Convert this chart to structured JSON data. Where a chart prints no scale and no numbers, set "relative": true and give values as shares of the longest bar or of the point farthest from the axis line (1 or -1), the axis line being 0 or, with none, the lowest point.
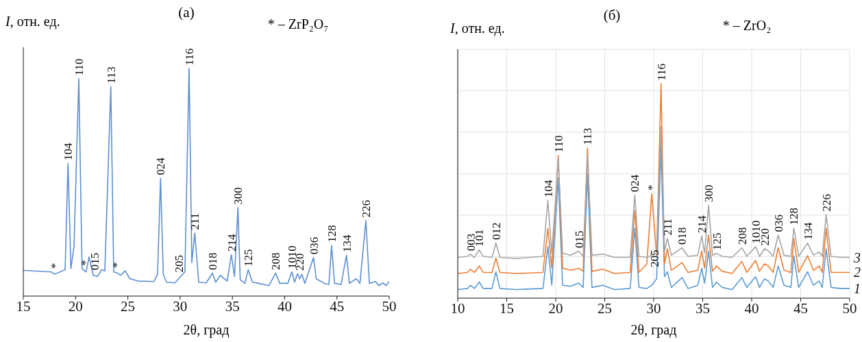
{
  "chart_data": [
    {
      "type": "line",
      "title": "(а)",
      "xlabel": "2θ, град",
      "ylabel": "I, отн. ед.",
      "relative": true,
      "grid": false,
      "xlim": [
        15,
        50
      ],
      "xticks": [
        15,
        20,
        25,
        30,
        35,
        40,
        45,
        50
      ],
      "x": [
        15,
        17.7,
        18.0,
        19.0,
        19.28,
        19.55,
        19.85,
        20.31,
        20.62,
        21.0,
        21.29,
        21.7,
        22.1,
        22.5,
        22.8,
        23.37,
        23.65,
        24.0,
        24.3,
        24.74,
        25.2,
        26.0,
        27.5,
        27.84,
        28.13,
        28.39,
        28.7,
        29.5,
        30.14,
        30.46,
        30.86,
        31.12,
        31.4,
        31.78,
        32.5,
        33.09,
        33.4,
        33.85,
        34.5,
        34.9,
        35.2,
        35.53,
        35.75,
        36.2,
        36.51,
        36.91,
        37.5,
        38.5,
        39.14,
        39.53,
        40.3,
        40.69,
        40.95,
        41.23,
        41.45,
        41.65,
        41.93,
        42.76,
        43.02,
        43.8,
        44.23,
        44.49,
        44.77,
        45.4,
        45.91,
        46.19,
        46.85,
        47.2,
        47.77,
        48.1,
        48.7,
        49.0,
        49.4,
        49.7,
        50
      ],
      "series": [
        {
          "color": "#5b8fd2",
          "values": [
            0.113,
            0.106,
            0.096,
            0.116,
            0.583,
            0.121,
            0.217,
            0.955,
            0.121,
            0.106,
            0.172,
            0.091,
            0.086,
            0.116,
            0.111,
            0.92,
            0.106,
            0.101,
            0.091,
            0.111,
            0.076,
            0.066,
            0.064,
            0.096,
            0.518,
            0.096,
            0.061,
            0.058,
            0.091,
            0.106,
            1.0,
            0.147,
            0.277,
            0.061,
            0.058,
            0.101,
            0.061,
            0.091,
            0.066,
            0.182,
            0.086,
            0.388,
            0.071,
            0.056,
            0.116,
            0.061,
            0.056,
            0.046,
            0.101,
            0.056,
            0.056,
            0.106,
            0.061,
            0.098,
            0.076,
            0.096,
            0.056,
            0.169,
            0.076,
            0.056,
            0.051,
            0.222,
            0.056,
            0.051,
            0.179,
            0.056,
            0.076,
            0.056,
            0.332,
            0.056,
            0.064,
            0.046,
            0.058,
            0.046,
            0.064
          ]
        }
      ],
      "annotations": [
        "* – ZrP₂O₇",
        {
          "text": "*",
          "x": 18.0,
          "y": 0.106
        },
        {
          "text": "104",
          "x": 19.28,
          "y": 0.583
        },
        {
          "text": "110",
          "x": 20.31,
          "y": 0.955
        },
        {
          "text": "*",
          "x": 20.9,
          "y": 0.12
        },
        {
          "text": "015",
          "x": 21.8,
          "y": 0.1
        },
        {
          "text": "113",
          "x": 23.37,
          "y": 0.92
        },
        {
          "text": "*",
          "x": 23.9,
          "y": 0.11
        },
        {
          "text": "024",
          "x": 28.13,
          "y": 0.518
        },
        {
          "text": "205",
          "x": 29.9,
          "y": 0.09
        },
        {
          "text": "116",
          "x": 30.86,
          "y": 1.0
        },
        {
          "text": "211",
          "x": 31.4,
          "y": 0.277
        },
        {
          "text": "018",
          "x": 33.09,
          "y": 0.101
        },
        {
          "text": "214",
          "x": 34.9,
          "y": 0.182
        },
        {
          "text": "300",
          "x": 35.53,
          "y": 0.388
        },
        {
          "text": "125",
          "x": 36.51,
          "y": 0.116
        },
        {
          "text": "208",
          "x": 39.14,
          "y": 0.101
        },
        {
          "text": "1010",
          "x": 40.69,
          "y": 0.106
        },
        {
          "text": "220",
          "x": 41.4,
          "y": 0.098
        },
        {
          "text": "036",
          "x": 42.76,
          "y": 0.169
        },
        {
          "text": "128",
          "x": 44.49,
          "y": 0.222
        },
        {
          "text": "134",
          "x": 45.91,
          "y": 0.179
        },
        {
          "text": "226",
          "x": 47.77,
          "y": 0.332
        }
      ]
    },
    {
      "type": "line",
      "title": "(б)",
      "xlabel": "2θ, град",
      "ylabel": "I, отн. ед.",
      "relative": true,
      "grid": true,
      "xlim": [
        10,
        50
      ],
      "xticks": [
        10,
        15,
        20,
        25,
        30,
        35,
        40,
        45,
        50
      ],
      "x": [
        10,
        11,
        11.3,
        11.7,
        12.2,
        12.6,
        13.5,
        13.9,
        14.3,
        16,
        18.7,
        19.2,
        19.6,
        20.26,
        20.7,
        21.5,
        22.35,
        22.8,
        23.24,
        23.7,
        24.8,
        26,
        27.6,
        28.07,
        28.5,
        29.3,
        29.8,
        30.3,
        30.75,
        31.1,
        31.4,
        31.8,
        32.9,
        33.5,
        34.5,
        34.9,
        35.2,
        35.6,
        36.0,
        36.4,
        37,
        38,
        39,
        39.5,
        40.4,
        40.8,
        41.3,
        41.7,
        42.2,
        42.7,
        43.3,
        44,
        44.3,
        44.8,
        45.7,
        46.3,
        46.9,
        47.2,
        47.6,
        48.1,
        49,
        50
      ],
      "series": [
        {
          "name": "1",
          "color": "#5b9bd5",
          "values": [
            0.04,
            0.045,
            0.06,
            0.045,
            0.075,
            0.045,
            0.045,
            0.123,
            0.045,
            0.04,
            0.045,
            0.24,
            0.06,
            0.56,
            0.06,
            0.055,
            0.07,
            0.05,
            0.58,
            0.05,
            0.06,
            0.04,
            0.045,
            0.326,
            0.05,
            0.045,
            0.06,
            0.09,
            0.7,
            0.1,
            0.123,
            0.05,
            0.096,
            0.045,
            0.06,
            0.139,
            0.07,
            0.219,
            0.05,
            0.075,
            0.05,
            0.04,
            0.096,
            0.05,
            0.1,
            0.05,
            0.09,
            0.08,
            0.05,
            0.15,
            0.06,
            0.05,
            0.198,
            0.05,
            0.123,
            0.06,
            0.08,
            0.05,
            0.23,
            0.05,
            0.045,
            0.045
          ]
        },
        {
          "name": "2",
          "color": "#ed7d31",
          "values": [
            0.115,
            0.12,
            0.135,
            0.12,
            0.15,
            0.12,
            0.12,
            0.187,
            0.12,
            0.115,
            0.12,
            0.326,
            0.14,
            0.665,
            0.14,
            0.13,
            0.139,
            0.125,
            0.7,
            0.125,
            0.135,
            0.115,
            0.12,
            0.41,
            0.12,
            0.16,
            0.487,
            0.2,
            1.0,
            0.16,
            0.23,
            0.13,
            0.166,
            0.12,
            0.13,
            0.219,
            0.14,
            0.294,
            0.125,
            0.15,
            0.125,
            0.115,
            0.171,
            0.12,
            0.176,
            0.125,
            0.16,
            0.15,
            0.12,
            0.235,
            0.13,
            0.12,
            0.278,
            0.12,
            0.198,
            0.13,
            0.15,
            0.12,
            0.326,
            0.12,
            0.12,
            0.12
          ]
        },
        {
          "name": "3",
          "color": "#a5a5a5",
          "values": [
            0.19,
            0.195,
            0.205,
            0.19,
            0.225,
            0.195,
            0.19,
            0.257,
            0.19,
            0.185,
            0.195,
            0.455,
            0.21,
            0.647,
            0.21,
            0.2,
            0.219,
            0.195,
            0.668,
            0.2,
            0.205,
            0.19,
            0.19,
            0.48,
            0.195,
            0.19,
            0.2,
            0.21,
            0.8,
            0.22,
            0.278,
            0.2,
            0.235,
            0.195,
            0.2,
            0.289,
            0.21,
            0.433,
            0.2,
            0.209,
            0.195,
            0.19,
            0.235,
            0.195,
            0.24,
            0.195,
            0.23,
            0.22,
            0.195,
            0.294,
            0.2,
            0.195,
            0.326,
            0.195,
            0.257,
            0.2,
            0.215,
            0.195,
            0.39,
            0.195,
            0.19,
            0.19
          ]
        }
      ],
      "annotations": [
        "* – ZrO₂",
        {
          "text": "003",
          "x": 11.3,
          "y": 0.205
        },
        {
          "text": "101",
          "x": 12.2,
          "y": 0.225
        },
        {
          "text": "012",
          "x": 13.9,
          "y": 0.257
        },
        {
          "text": "104",
          "x": 19.2,
          "y": 0.455
        },
        {
          "text": "110",
          "x": 20.26,
          "y": 0.665
        },
        {
          "text": "015",
          "x": 22.35,
          "y": 0.219
        },
        {
          "text": "113",
          "x": 23.24,
          "y": 0.7
        },
        {
          "text": "024",
          "x": 28.07,
          "y": 0.48
        },
        {
          "text": "*",
          "x": 29.8,
          "y": 0.487
        },
        {
          "text": "205",
          "x": 30.1,
          "y": 0.13
        },
        {
          "text": "116",
          "x": 30.75,
          "y": 1.0
        },
        {
          "text": "211",
          "x": 31.4,
          "y": 0.278
        },
        {
          "text": "018",
          "x": 32.9,
          "y": 0.235
        },
        {
          "text": "214",
          "x": 34.9,
          "y": 0.289
        },
        {
          "text": "300",
          "x": 35.6,
          "y": 0.433
        },
        {
          "text": "125",
          "x": 36.4,
          "y": 0.209
        },
        {
          "text": "208",
          "x": 39.0,
          "y": 0.235
        },
        {
          "text": "1010",
          "x": 40.4,
          "y": 0.24
        },
        {
          "text": "220",
          "x": 41.3,
          "y": 0.23
        },
        {
          "text": "036",
          "x": 42.7,
          "y": 0.294
        },
        {
          "text": "128",
          "x": 44.3,
          "y": 0.326
        },
        {
          "text": "134",
          "x": 45.7,
          "y": 0.257
        },
        {
          "text": "226",
          "x": 47.6,
          "y": 0.39
        }
      ]
    }
  ]
}
